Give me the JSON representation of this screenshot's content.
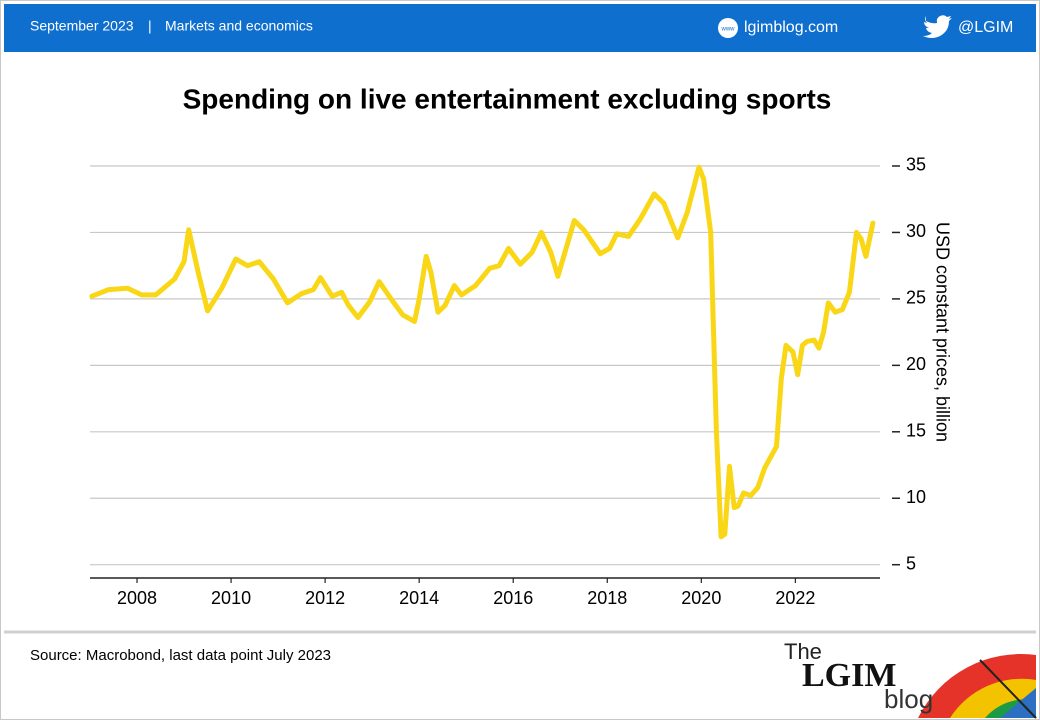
{
  "header": {
    "date": "September 2023",
    "separator": "|",
    "section": "Markets and economics",
    "site": "lgimblog.com",
    "handle": "@LGIM"
  },
  "chart_data": {
    "type": "line",
    "title": "Spending on live entertainment excluding sports",
    "y_label": "USD constant prices, billion",
    "x": [
      2007.04,
      2007.4,
      2007.8,
      2008.1,
      2008.4,
      2008.8,
      2009.0,
      2009.1,
      2009.3,
      2009.5,
      2009.8,
      2010.1,
      2010.35,
      2010.6,
      2010.9,
      2011.2,
      2011.5,
      2011.75,
      2011.9,
      2012.15,
      2012.35,
      2012.5,
      2012.7,
      2012.95,
      2013.15,
      2013.4,
      2013.65,
      2013.9,
      2014.0,
      2014.15,
      2014.25,
      2014.4,
      2014.55,
      2014.75,
      2014.9,
      2015.2,
      2015.5,
      2015.7,
      2015.9,
      2016.15,
      2016.4,
      2016.6,
      2016.8,
      2016.95,
      2017.1,
      2017.3,
      2017.5,
      2017.85,
      2018.05,
      2018.2,
      2018.45,
      2018.7,
      2019.0,
      2019.2,
      2019.5,
      2019.7,
      2019.95,
      2020.05,
      2020.2,
      2020.32,
      2020.42,
      2020.5,
      2020.6,
      2020.7,
      2020.78,
      2020.9,
      2021.05,
      2021.2,
      2021.35,
      2021.6,
      2021.7,
      2021.8,
      2021.95,
      2022.05,
      2022.15,
      2022.25,
      2022.4,
      2022.5,
      2022.6,
      2022.7,
      2022.85,
      2023.0,
      2023.15,
      2023.3,
      2023.4,
      2023.5,
      2023.65
    ],
    "series": [
      {
        "name": "Spending",
        "color": "#f9d616",
        "values": [
          25.2,
          25.7,
          25.8,
          25.3,
          25.3,
          26.5,
          27.8,
          30.2,
          27.0,
          24.1,
          25.8,
          28.0,
          27.5,
          27.8,
          26.5,
          24.7,
          25.4,
          25.7,
          26.6,
          25.2,
          25.5,
          24.5,
          23.6,
          24.8,
          26.3,
          25.0,
          23.8,
          23.3,
          25.0,
          28.2,
          27.0,
          24.0,
          24.5,
          26.0,
          25.3,
          26.0,
          27.3,
          27.5,
          28.8,
          27.6,
          28.5,
          30.0,
          28.5,
          26.7,
          28.5,
          30.9,
          30.2,
          28.4,
          28.8,
          29.9,
          29.7,
          31.0,
          32.9,
          32.2,
          29.6,
          31.5,
          34.9,
          34.0,
          30.0,
          15.0,
          7.1,
          7.3,
          12.4,
          9.3,
          9.4,
          10.4,
          10.2,
          10.8,
          12.3,
          13.9,
          19.0,
          21.5,
          21.0,
          19.3,
          21.5,
          21.8,
          21.9,
          21.3,
          22.5,
          24.7,
          24.0,
          24.2,
          25.5,
          30.0,
          29.5,
          28.2,
          30.7
        ]
      }
    ],
    "xlim": [
      2007,
      2023.8
    ],
    "xticks": [
      2008,
      2010,
      2012,
      2014,
      2016,
      2018,
      2020,
      2022
    ],
    "ylim": [
      4,
      36
    ],
    "yticks": [
      5,
      10,
      15,
      20,
      25,
      30,
      35
    ],
    "grid": true
  },
  "footer": {
    "source": "Source: Macrobond, last data point July 2023"
  },
  "logo": {
    "the": "The",
    "name": "LGIM",
    "blog": "blog"
  }
}
